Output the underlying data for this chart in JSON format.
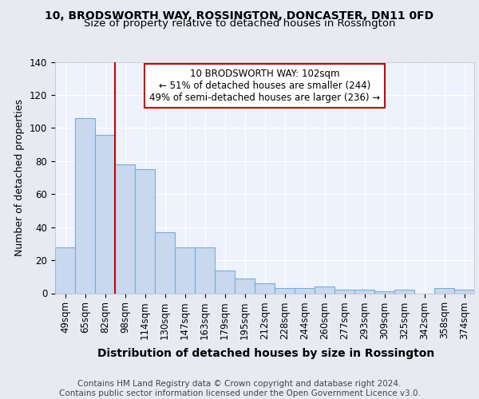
{
  "title": "10, BRODSWORTH WAY, ROSSINGTON, DONCASTER, DN11 0FD",
  "subtitle": "Size of property relative to detached houses in Rossington",
  "xlabel": "Distribution of detached houses by size in Rossington",
  "ylabel": "Number of detached properties",
  "categories": [
    "49sqm",
    "65sqm",
    "82sqm",
    "98sqm",
    "114sqm",
    "130sqm",
    "147sqm",
    "163sqm",
    "179sqm",
    "195sqm",
    "212sqm",
    "228sqm",
    "244sqm",
    "260sqm",
    "277sqm",
    "293sqm",
    "309sqm",
    "325sqm",
    "342sqm",
    "358sqm",
    "374sqm"
  ],
  "values": [
    28,
    106,
    96,
    78,
    75,
    37,
    28,
    28,
    14,
    9,
    6,
    3,
    3,
    4,
    2,
    2,
    1,
    2,
    0,
    3,
    2
  ],
  "bar_color": "#c8d8ee",
  "bar_edge_color": "#7aadd4",
  "background_color": "#e8eaf2",
  "plot_bg_color": "#eef2fc",
  "grid_color": "#ffffff",
  "red_line_color": "#cc0000",
  "annotation_text": "10 BRODSWORTH WAY: 102sqm\n← 51% of detached houses are smaller (244)\n49% of semi-detached houses are larger (236) →",
  "annotation_box_color": "#ffffff",
  "annotation_box_edge": "#cc0000",
  "ylim": [
    0,
    140
  ],
  "yticks": [
    0,
    20,
    40,
    60,
    80,
    100,
    120,
    140
  ],
  "footer_text": "Contains HM Land Registry data © Crown copyright and database right 2024.\nContains public sector information licensed under the Open Government Licence v3.0.",
  "title_fontsize": 10,
  "subtitle_fontsize": 9.5,
  "xlabel_fontsize": 10,
  "ylabel_fontsize": 9,
  "tick_fontsize": 8.5,
  "annotation_fontsize": 8.5,
  "footer_fontsize": 7.5
}
